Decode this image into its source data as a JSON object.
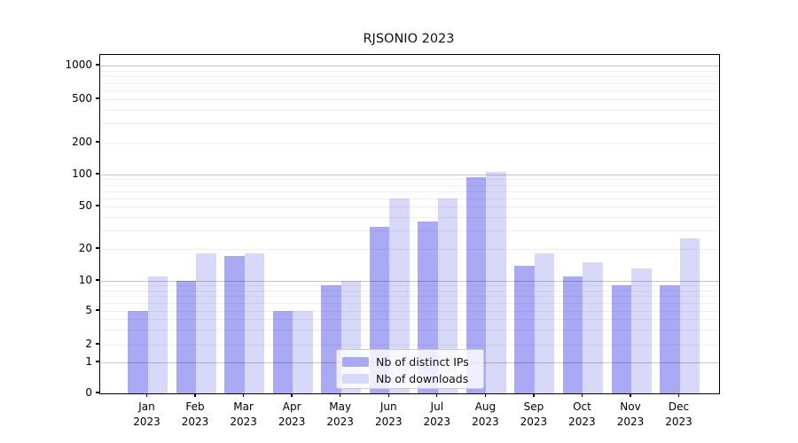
{
  "title": "RJSONIO 2023",
  "legend": {
    "items": [
      {
        "label": "Nb of distinct IPs",
        "color": "#a9a9f6"
      },
      {
        "label": "Nb of downloads",
        "color": "#d8d8f9"
      }
    ]
  },
  "colors": {
    "bar_distinct_ips": "#a9a9f6",
    "bar_downloads": "#d8d8f9",
    "grid_minor": "#ebebeb",
    "grid_major": "#c8c8c8",
    "axis": "#000000"
  },
  "chart_data": {
    "type": "bar",
    "title": "RJSONIO 2023",
    "categories": [
      "Jan 2023",
      "Feb 2023",
      "Mar 2023",
      "Apr 2023",
      "May 2023",
      "Jun 2023",
      "Jul 2023",
      "Aug 2023",
      "Sep 2023",
      "Oct 2023",
      "Nov 2023",
      "Dec 2023"
    ],
    "series": [
      {
        "name": "Nb of distinct IPs",
        "color": "#a9a9f6",
        "values": [
          5,
          10,
          17,
          5,
          9,
          32,
          36,
          95,
          14,
          11,
          9,
          9
        ]
      },
      {
        "name": "Nb of downloads",
        "color": "#d8d8f9",
        "values": [
          11,
          18,
          18,
          5,
          10,
          60,
          60,
          105,
          18,
          15,
          13,
          25
        ]
      }
    ],
    "xlabel": "",
    "ylabel": "",
    "yscale": "symlog",
    "yticks": [
      0,
      1,
      2,
      5,
      10,
      20,
      50,
      100,
      200,
      500,
      1000
    ],
    "ylim": [
      0,
      1250
    ],
    "grid": "horizontal",
    "legend_position": "lower center"
  }
}
